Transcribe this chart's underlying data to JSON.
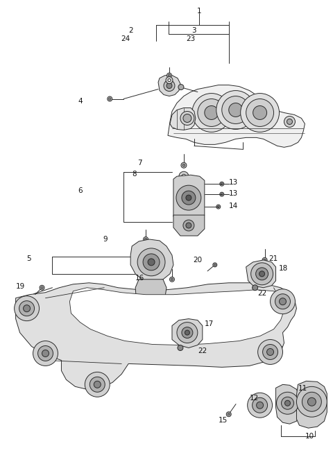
{
  "bg_color": "#ffffff",
  "line_color": "#2a2a2a",
  "text_color": "#111111",
  "fig_width": 4.8,
  "fig_height": 6.56,
  "dpi": 100
}
